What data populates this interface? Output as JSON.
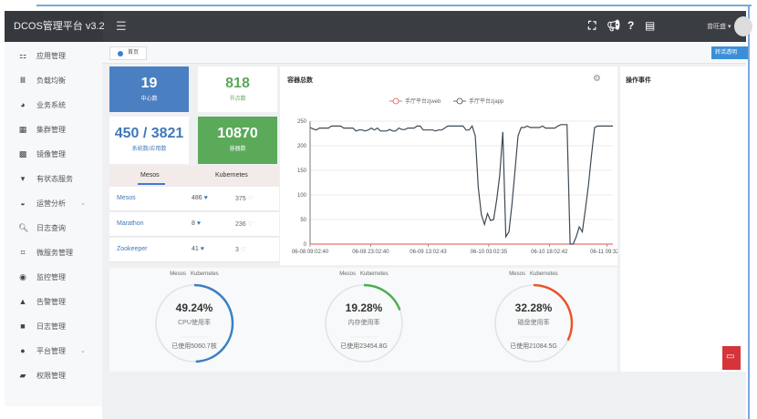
{
  "app": {
    "title": "DCOS管理平台 v3.2",
    "user": "曾旺盛"
  },
  "nav_icons": [
    "fullscreen-icon",
    "megaphone-icon",
    "help-icon",
    "document-icon"
  ],
  "sidebar": {
    "items": [
      {
        "label": "应用管理",
        "icon": "apps-icon",
        "glyph": "⚏"
      },
      {
        "label": "负载均衡",
        "icon": "balance-icon",
        "glyph": "Ⅲ"
      },
      {
        "label": "业务系统",
        "icon": "pie-icon",
        "glyph": "◕"
      },
      {
        "label": "集群管理",
        "icon": "grid-icon",
        "glyph": "▦"
      },
      {
        "label": "镜像管理",
        "icon": "image-icon",
        "glyph": "▩"
      },
      {
        "label": "有状态服务",
        "icon": "filter-icon",
        "glyph": "▾"
      },
      {
        "label": "运营分析",
        "icon": "analysis-icon",
        "glyph": "◒",
        "expandable": true
      },
      {
        "label": "日志查询",
        "icon": "search-icon",
        "glyph": "🔍︎"
      },
      {
        "label": "微服务管理",
        "icon": "crop-icon",
        "glyph": "⌗"
      },
      {
        "label": "监控管理",
        "icon": "eye-icon",
        "glyph": "◉"
      },
      {
        "label": "告警管理",
        "icon": "bell-icon",
        "glyph": "▲"
      },
      {
        "label": "日志管理",
        "icon": "briefcase-icon",
        "glyph": "■"
      },
      {
        "label": "平台管理",
        "icon": "cloud-icon",
        "glyph": "●",
        "expandable": true
      },
      {
        "label": "权限管理",
        "icon": "lock-icon",
        "glyph": "▰"
      }
    ]
  },
  "breadcrumb": {
    "home": "首页",
    "right_button": "转活透明"
  },
  "stats": [
    {
      "value": "19",
      "label": "中心数",
      "bg": "#4a7fc1",
      "color": "#ffffff"
    },
    {
      "value": "818",
      "label": "节点数",
      "bg": "#ffffff",
      "color": "#5aa85a"
    },
    {
      "value": "450 / 3821",
      "label": "系统数/应用数",
      "bg": "#ffffff",
      "color": "#3f78b8"
    },
    {
      "value": "10870",
      "label": "容器数",
      "bg": "#5aaa5a",
      "color": "#ffffff"
    }
  ],
  "cluster_tabs": [
    "Mesos",
    "Kubernetes"
  ],
  "cluster_rows": [
    {
      "name": "Mesos",
      "mesos": "486",
      "k8s": "375"
    },
    {
      "name": "Marathon",
      "mesos": "8",
      "k8s": "236"
    },
    {
      "name": "Zookeeper",
      "mesos": "41",
      "k8s": "3"
    }
  ],
  "events": {
    "title": "操作事件"
  },
  "chart_data": {
    "type": "line",
    "title": "容器总数",
    "ylim": [
      0,
      250
    ],
    "yticks": [
      0,
      50,
      100,
      150,
      200,
      250
    ],
    "grid": true,
    "legend_position": "top",
    "xtick_labels": [
      "06-08 09:02:40",
      "06-08 23:02:40",
      "06-09 13:02:43",
      "06-10 03:02:35",
      "06-10 18:02:42",
      "06-11 09:32:3"
    ],
    "series": [
      {
        "name": "手厅平台zjweb",
        "color": "#d9534f",
        "values": [
          0,
          0,
          0,
          0,
          0,
          0,
          0,
          0,
          0,
          0,
          0,
          0,
          0,
          0,
          0,
          0,
          0,
          0,
          0,
          0,
          0,
          0,
          0,
          0,
          0,
          0,
          0,
          0,
          0,
          0,
          0,
          0,
          0,
          0,
          0,
          0,
          0,
          0,
          0,
          0,
          0,
          0,
          0,
          0,
          0,
          0,
          0,
          0,
          0,
          0,
          0,
          0,
          0,
          0,
          0,
          0,
          0,
          0,
          0,
          0,
          0,
          0,
          0,
          0,
          0,
          0,
          0,
          0,
          0,
          0,
          0,
          0,
          0,
          0,
          0,
          0,
          0,
          0,
          0,
          0,
          0,
          0,
          0,
          0,
          0,
          0,
          0,
          0,
          0,
          0,
          0,
          0,
          0,
          0,
          0,
          0,
          0,
          0,
          0,
          0
        ]
      },
      {
        "name": "手厅平台zjapp",
        "color": "#3d4a55",
        "values": [
          237,
          234,
          232,
          236,
          236,
          236,
          236,
          240,
          240,
          240,
          240,
          236,
          236,
          236,
          236,
          230,
          232,
          232,
          230,
          232,
          236,
          232,
          236,
          230,
          230,
          230,
          233,
          230,
          230,
          236,
          233,
          233,
          236,
          236,
          236,
          240,
          240,
          232,
          232,
          232,
          232,
          230,
          232,
          232,
          236,
          240,
          240,
          240,
          240,
          240,
          240,
          232,
          232,
          240,
          220,
          115,
          60,
          40,
          62,
          48,
          50,
          90,
          140,
          228,
          15,
          25,
          80,
          150,
          220,
          237,
          237,
          240,
          237,
          237,
          237,
          237,
          240,
          236,
          236,
          236,
          236,
          240,
          243,
          243,
          243,
          0,
          0,
          15,
          35,
          25,
          70,
          120,
          180,
          237,
          240,
          240,
          240,
          240,
          240,
          240
        ]
      }
    ]
  },
  "gauges": [
    {
      "legend": [
        "Mesos",
        "Kubernetes"
      ],
      "percent": 49.24,
      "value": "49.24%",
      "label": "CPU使用率",
      "used": "已使用5060.7核",
      "color": "#3a7fc4"
    },
    {
      "legend": [
        "Mesos",
        "Kubernetes"
      ],
      "percent": 19.28,
      "value": "19.28%",
      "label": "内存使用率",
      "used": "已使用23454.8G",
      "color": "#4caf50"
    },
    {
      "legend": [
        "Mesos",
        "Kubernetes"
      ],
      "percent": 32.28,
      "value": "32.28%",
      "label": "磁盘使用率",
      "used": "已使用21084.5G",
      "color": "#e8562a"
    }
  ]
}
